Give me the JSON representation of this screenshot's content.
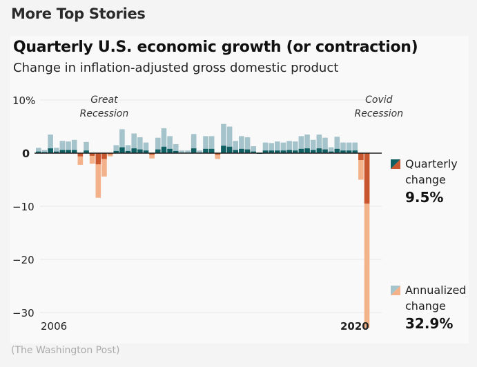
{
  "page": {
    "section_title": "More Top Stories",
    "source": "(The Washington Post)"
  },
  "colors": {
    "quarterly_positive": "#0f5f63",
    "annualized_positive": "#a5c3cb",
    "quarterly_negative": "#c8562e",
    "annualized_negative": "#f3b28a",
    "zero_line": "#222222",
    "grid": "#e6e6e6"
  },
  "chart_data": {
    "type": "bar",
    "title": "Quarterly U.S. economic growth (or contraction)",
    "subtitle": "Change in inflation-adjusted gross domestic product",
    "xlabel": "",
    "ylabel": "",
    "ylim": [
      -33,
      11
    ],
    "yticks": [
      {
        "value": 10,
        "label": "10%"
      },
      {
        "value": 0,
        "label": "0"
      },
      {
        "value": -10,
        "label": "−10"
      },
      {
        "value": -20,
        "label": "−20"
      },
      {
        "value": -30,
        "label": "−30"
      }
    ],
    "x_labels": [
      {
        "index": 0,
        "label": "2006"
      },
      {
        "index": 56,
        "label": "2020"
      }
    ],
    "annotations": [
      {
        "text": [
          "Great",
          "Recession"
        ],
        "index": 11
      },
      {
        "text": [
          "Covid",
          "Recession"
        ],
        "index": 57
      }
    ],
    "quarters": [
      "2006Q1",
      "2006Q2",
      "2006Q3",
      "2006Q4",
      "2007Q1",
      "2007Q2",
      "2007Q3",
      "2007Q4",
      "2008Q1",
      "2008Q2",
      "2008Q3",
      "2008Q4",
      "2009Q1",
      "2009Q2",
      "2009Q3",
      "2009Q4",
      "2010Q1",
      "2010Q2",
      "2010Q3",
      "2010Q4",
      "2011Q1",
      "2011Q2",
      "2011Q3",
      "2011Q4",
      "2012Q1",
      "2012Q2",
      "2012Q3",
      "2012Q4",
      "2013Q1",
      "2013Q2",
      "2013Q3",
      "2013Q4",
      "2014Q1",
      "2014Q2",
      "2014Q3",
      "2014Q4",
      "2015Q1",
      "2015Q2",
      "2015Q3",
      "2015Q4",
      "2016Q1",
      "2016Q2",
      "2016Q3",
      "2016Q4",
      "2017Q1",
      "2017Q2",
      "2017Q3",
      "2017Q4",
      "2018Q1",
      "2018Q2",
      "2018Q3",
      "2018Q4",
      "2019Q1",
      "2019Q2",
      "2019Q3",
      "2019Q4",
      "2020Q1",
      "2020Q2"
    ],
    "series": [
      {
        "name": "Annualized change",
        "values": [
          1.0,
          0.6,
          3.5,
          1.0,
          2.3,
          2.2,
          2.5,
          -2.2,
          2.1,
          -2.0,
          -8.4,
          -4.4,
          -0.6,
          1.5,
          4.5,
          1.5,
          3.7,
          3.0,
          2.0,
          -1.0,
          2.9,
          4.7,
          3.2,
          1.7,
          0.5,
          0.5,
          3.6,
          0.5,
          3.2,
          3.2,
          -1.1,
          5.5,
          5.0,
          2.3,
          3.2,
          3.0,
          1.3,
          0.1,
          2.0,
          1.9,
          2.2,
          2.0,
          2.3,
          2.2,
          3.2,
          3.5,
          2.5,
          3.5,
          2.9,
          1.1,
          3.1,
          2.0,
          2.0,
          2.0,
          -5.0,
          -32.9,
          0.0,
          0.0
        ],
        "color": "#a5c3cb"
      },
      {
        "name": "Quarterly change",
        "values": [
          0.3,
          0.2,
          0.9,
          0.3,
          0.6,
          0.6,
          0.6,
          -0.6,
          0.5,
          -0.5,
          -2.1,
          -1.1,
          -0.2,
          0.4,
          1.1,
          0.4,
          0.9,
          0.7,
          0.5,
          -0.3,
          0.7,
          1.2,
          0.8,
          0.4,
          0.1,
          0.1,
          0.9,
          0.1,
          0.8,
          0.8,
          -0.3,
          1.4,
          1.2,
          0.6,
          0.8,
          0.7,
          0.3,
          0.0,
          0.5,
          0.5,
          0.5,
          0.5,
          0.6,
          0.5,
          0.8,
          0.9,
          0.6,
          0.9,
          0.7,
          0.3,
          0.8,
          0.5,
          0.5,
          0.5,
          -1.3,
          -9.5,
          0.0,
          0.0
        ],
        "color": "#0f5f63"
      }
    ],
    "legend": [
      {
        "label": [
          "Quarterly",
          "change"
        ],
        "value": "9.5%"
      },
      {
        "label": [
          "Annualized",
          "change"
        ],
        "value": "32.9%"
      }
    ],
    "grid": true,
    "legend_placement": "right"
  }
}
